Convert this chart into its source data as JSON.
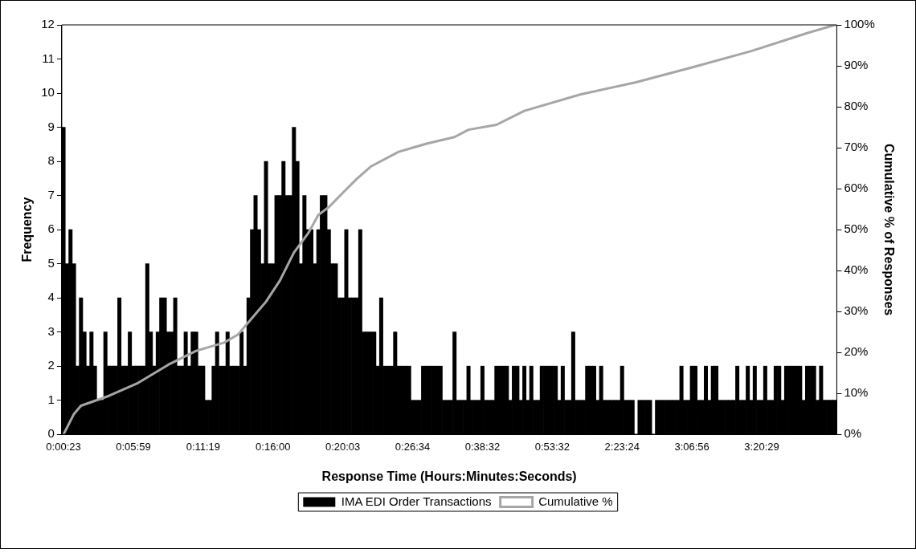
{
  "chart_data": {
    "type": "bar",
    "xlabel": "Response Time (Hours:Minutes:Seconds)",
    "ylabel": "Frequency",
    "y2label": "Cumulative % of Responses",
    "categories": [
      "0:00:23",
      null,
      null,
      null,
      null,
      null,
      null,
      null,
      null,
      null,
      null,
      null,
      null,
      null,
      null,
      null,
      null,
      null,
      null,
      null,
      "0:05:59",
      null,
      null,
      null,
      null,
      null,
      null,
      null,
      null,
      null,
      null,
      null,
      null,
      null,
      null,
      null,
      null,
      null,
      null,
      null,
      "0:11:19",
      null,
      null,
      null,
      null,
      null,
      null,
      null,
      null,
      null,
      null,
      null,
      null,
      null,
      null,
      null,
      null,
      null,
      null,
      null,
      "0:16:00",
      null,
      null,
      null,
      null,
      null,
      null,
      null,
      null,
      null,
      null,
      null,
      null,
      null,
      null,
      null,
      null,
      null,
      null,
      null,
      "0:20:03",
      null,
      null,
      null,
      null,
      null,
      null,
      null,
      null,
      null,
      null,
      null,
      null,
      null,
      null,
      null,
      null,
      null,
      null,
      null,
      "0:26:34",
      null,
      null,
      null,
      null,
      null,
      null,
      null,
      null,
      null,
      null,
      null,
      null,
      null,
      null,
      null,
      null,
      null,
      null,
      null,
      "0:38:32",
      null,
      null,
      null,
      null,
      null,
      null,
      null,
      null,
      null,
      null,
      null,
      null,
      null,
      null,
      null,
      null,
      null,
      null,
      null,
      "0:53:32",
      null,
      null,
      null,
      null,
      null,
      null,
      null,
      null,
      null,
      null,
      null,
      null,
      null,
      null,
      null,
      null,
      null,
      null,
      null,
      "2:23:24",
      null,
      null,
      null,
      null,
      null,
      null,
      null,
      null,
      null,
      null,
      null,
      null,
      null,
      null,
      null,
      null,
      null,
      null,
      null,
      "3:06:56",
      null,
      null,
      null,
      null,
      null,
      null,
      null,
      null,
      null,
      null,
      null,
      null,
      null,
      null,
      null,
      null,
      null,
      null,
      null,
      "3:20:29",
      null,
      null,
      null,
      null,
      null,
      null,
      null,
      null,
      null,
      null,
      null,
      null,
      null,
      null,
      null,
      null,
      null,
      null,
      null,
      null,
      null
    ],
    "series": [
      {
        "name": "IMA EDI Order Transactions",
        "color": "#000000",
        "values": [
          9,
          5,
          6,
          5,
          2,
          4,
          3,
          2,
          3,
          2,
          1,
          1,
          3,
          2,
          2,
          2,
          4,
          2,
          2,
          3,
          2,
          2,
          2,
          2,
          5,
          3,
          2,
          3,
          4,
          4,
          3,
          3,
          4,
          2,
          2,
          3,
          2,
          3,
          3,
          2,
          2,
          1,
          1,
          2,
          3,
          2,
          2,
          3,
          2,
          2,
          2,
          3,
          2,
          4,
          6,
          7,
          6,
          5,
          8,
          5,
          5,
          7,
          7,
          8,
          7,
          7,
          9,
          8,
          5,
          7,
          6,
          6,
          5,
          6,
          7,
          7,
          6,
          5,
          5,
          4,
          4,
          6,
          4,
          4,
          4,
          6,
          3,
          3,
          3,
          3,
          2,
          4,
          2,
          2,
          2,
          3,
          2,
          2,
          2,
          2,
          1,
          1,
          1,
          2,
          2,
          2,
          2,
          2,
          2,
          1,
          1,
          1,
          3,
          1,
          1,
          1,
          2,
          1,
          1,
          1,
          2,
          1,
          1,
          1,
          2,
          2,
          2,
          2,
          1,
          2,
          2,
          1,
          2,
          1,
          2,
          1,
          1,
          2,
          2,
          2,
          2,
          2,
          1,
          2,
          1,
          1,
          3,
          1,
          1,
          1,
          2,
          2,
          2,
          1,
          2,
          1,
          1,
          1,
          1,
          1,
          2,
          1,
          1,
          1,
          0,
          1,
          1,
          1,
          1,
          0,
          1,
          1,
          1,
          1,
          1,
          1,
          1,
          2,
          1,
          1,
          2,
          2,
          1,
          1,
          2,
          1,
          2,
          2,
          1,
          1,
          1,
          1,
          1,
          2,
          1,
          1,
          2,
          1,
          2,
          1,
          1,
          2,
          1,
          1,
          2,
          2,
          1,
          2,
          2,
          2,
          2,
          2,
          1,
          2,
          2,
          2,
          1,
          2,
          1,
          1,
          1,
          1
        ]
      },
      {
        "name": "Cumulative %",
        "type": "line",
        "axis": "y2",
        "color": "#a6a6a6",
        "values": [
          0,
          null,
          null,
          5,
          null,
          7,
          null,
          null,
          null,
          null,
          null,
          null,
          null,
          9.4,
          null,
          null,
          null,
          null,
          null,
          null,
          null,
          12.4,
          null,
          null,
          null,
          null,
          null,
          null,
          null,
          null,
          17,
          null,
          null,
          null,
          null,
          null,
          null,
          null,
          20.4,
          null,
          null,
          null,
          null,
          null,
          null,
          null,
          22.4,
          null,
          null,
          null,
          24.4,
          null,
          null,
          null,
          28.4,
          null,
          null,
          null,
          32.4,
          null,
          null,
          null,
          37.6,
          null,
          null,
          null,
          44.4,
          null,
          null,
          null,
          49,
          null,
          null,
          53.6,
          null,
          null,
          55.5,
          null,
          null,
          null,
          59,
          null,
          null,
          null,
          62.4,
          null,
          null,
          null,
          65.4,
          null,
          null,
          null,
          null,
          null,
          null,
          null,
          69,
          null,
          null,
          null,
          null,
          null,
          null,
          null,
          71,
          null,
          null,
          null,
          null,
          null,
          null,
          null,
          72.6,
          null,
          null,
          null,
          74.4,
          null,
          null,
          null,
          null,
          null,
          null,
          null,
          75.6,
          null,
          null,
          null,
          null,
          null,
          null,
          null,
          79,
          null,
          null,
          null,
          null,
          null,
          null,
          null,
          null,
          null,
          null,
          null,
          null,
          null,
          null,
          null,
          83,
          null,
          null,
          null,
          null,
          null,
          null,
          null,
          null,
          null,
          null,
          null,
          null,
          null,
          null,
          null,
          86,
          null,
          null,
          null,
          null,
          null,
          null,
          null,
          null,
          null,
          null,
          null,
          null,
          null,
          null,
          null,
          89.6,
          null,
          null,
          null,
          null,
          null,
          null,
          null,
          null,
          null,
          null,
          null,
          null,
          null,
          null,
          null,
          null,
          93.6,
          null,
          null,
          null,
          null,
          null,
          null,
          null,
          null,
          null,
          null,
          null,
          null,
          null,
          null,
          null,
          98,
          null,
          null,
          null,
          null,
          null,
          null,
          null,
          100
        ]
      }
    ],
    "ylim": [
      0,
      12
    ],
    "yticks": [
      0,
      1,
      2,
      3,
      4,
      5,
      6,
      7,
      8,
      9,
      10,
      11,
      12
    ],
    "y2lim": [
      0,
      100
    ],
    "y2ticks": [
      {
        "value": 0,
        "label": "0%"
      },
      {
        "value": 10,
        "label": "10%"
      },
      {
        "value": 20,
        "label": "20%"
      },
      {
        "value": 30,
        "label": "30%"
      },
      {
        "value": 40,
        "label": "40%"
      },
      {
        "value": 50,
        "label": "50%"
      },
      {
        "value": 60,
        "label": "60%"
      },
      {
        "value": 70,
        "label": "70%"
      },
      {
        "value": 80,
        "label": "80%"
      },
      {
        "value": 90,
        "label": "90%"
      },
      {
        "value": 100,
        "label": "100%"
      }
    ],
    "grid": false,
    "legend": "bottom",
    "marker": "none",
    "line_style": "solid"
  }
}
